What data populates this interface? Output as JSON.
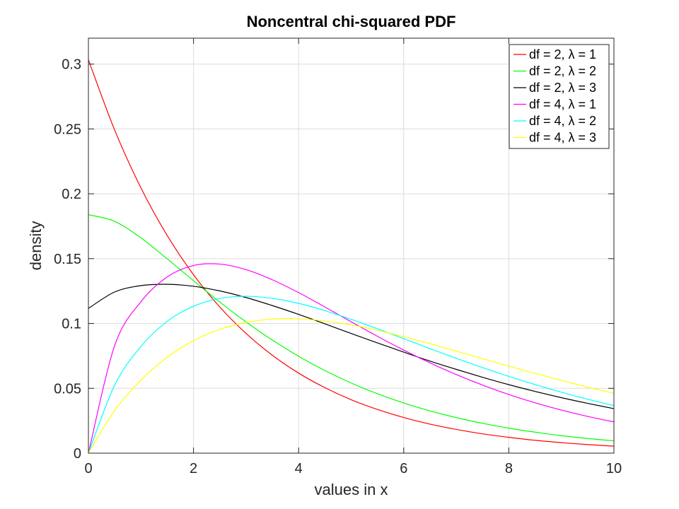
{
  "chart_data": {
    "type": "line",
    "title": "Noncentral chi-squared PDF",
    "xlabel": "values in x",
    "ylabel": "density",
    "xlim": [
      0,
      10
    ],
    "ylim": [
      0,
      0.32
    ],
    "xticks": [
      0,
      2,
      4,
      6,
      8,
      10
    ],
    "yticks": [
      0,
      0.05,
      0.1,
      0.15,
      0.2,
      0.25,
      0.3
    ],
    "xtick_labels": [
      "0",
      "2",
      "4",
      "6",
      "8",
      "10"
    ],
    "ytick_labels": [
      "0",
      "0.05",
      "0.1",
      "0.15",
      "0.2",
      "0.25",
      "0.3"
    ],
    "grid": true,
    "legend_position": "top-right",
    "x": [
      0,
      0.5,
      1,
      1.5,
      2,
      2.5,
      3,
      3.5,
      4,
      4.5,
      5,
      5.5,
      6,
      6.5,
      7,
      7.5,
      8,
      8.5,
      9,
      9.5,
      10
    ],
    "series": [
      {
        "name": "df = 2, λ = 1",
        "color": "#ff0000",
        "values": [
          0.3033,
          0.2491,
          0.2045,
          0.1678,
          0.1376,
          0.1127,
          0.0923,
          0.0755,
          0.0617,
          0.0505,
          0.0412,
          0.0337,
          0.0275,
          0.0224,
          0.0183,
          0.0149,
          0.0122,
          0.0099,
          0.0081,
          0.0066,
          0.0054
        ]
      },
      {
        "name": "df = 2, λ = 2",
        "color": "#00ff00",
        "values": [
          0.1839,
          0.1787,
          0.166,
          0.1498,
          0.133,
          0.1165,
          0.1012,
          0.0872,
          0.0747,
          0.0637,
          0.0541,
          0.0458,
          0.0387,
          0.0326,
          0.0274,
          0.023,
          0.0193,
          0.0162,
          0.0135,
          0.0113,
          0.0095
        ]
      },
      {
        "name": "df = 2, λ = 3",
        "color": "#000000",
        "values": [
          0.1116,
          0.1243,
          0.1292,
          0.1302,
          0.1287,
          0.1251,
          0.12,
          0.1138,
          0.107,
          0.0997,
          0.0923,
          0.085,
          0.0779,
          0.071,
          0.0646,
          0.0585,
          0.0528,
          0.0476,
          0.0428,
          0.0384,
          0.0343
        ]
      },
      {
        "name": "df = 4, λ = 1",
        "color": "#ff00ff",
        "values": [
          0.0,
          0.083,
          0.1168,
          0.1359,
          0.1447,
          0.1458,
          0.1415,
          0.1337,
          0.1238,
          0.1127,
          0.1013,
          0.0901,
          0.0795,
          0.0696,
          0.0606,
          0.0525,
          0.0452,
          0.0388,
          0.0332,
          0.0283,
          0.0241
        ]
      },
      {
        "name": "df = 4, λ = 2",
        "color": "#00ffff",
        "values": [
          0.0,
          0.0525,
          0.0823,
          0.1017,
          0.1133,
          0.1193,
          0.121,
          0.1194,
          0.1155,
          0.1099,
          0.1032,
          0.0959,
          0.0883,
          0.0806,
          0.0731,
          0.066,
          0.0592,
          0.0529,
          0.047,
          0.0416,
          0.0367
        ]
      },
      {
        "name": "df = 4, λ = 3",
        "color": "#ffff00",
        "values": [
          0.0,
          0.033,
          0.0563,
          0.074,
          0.0867,
          0.0955,
          0.1008,
          0.1034,
          0.1036,
          0.1019,
          0.0989,
          0.0947,
          0.0898,
          0.0844,
          0.0787,
          0.0729,
          0.0671,
          0.0615,
          0.0561,
          0.0509,
          0.0461
        ]
      }
    ]
  }
}
